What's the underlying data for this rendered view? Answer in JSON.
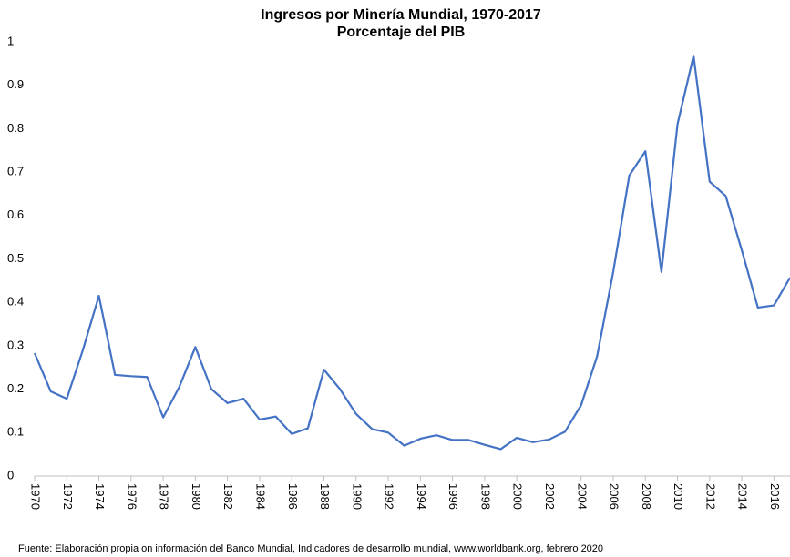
{
  "chart_data": {
    "type": "line",
    "title": "Ingresos por Minería Mundial, 1970-2017",
    "subtitle": "Porcentaje del PIB",
    "source": "Fuente: Elaboración propia on información del Banco Mundial, Indicadores de  desarrollo mundial,  www.worldbank.org, febrero 2020",
    "x": [
      1970,
      1971,
      1972,
      1973,
      1974,
      1975,
      1976,
      1977,
      1978,
      1979,
      1980,
      1981,
      1982,
      1983,
      1984,
      1985,
      1986,
      1987,
      1988,
      1989,
      1990,
      1991,
      1992,
      1993,
      1994,
      1995,
      1996,
      1997,
      1998,
      1999,
      2000,
      2001,
      2002,
      2003,
      2004,
      2005,
      2006,
      2007,
      2008,
      2009,
      2010,
      2011,
      2012,
      2013,
      2014,
      2015,
      2016,
      2017
    ],
    "series": [
      {
        "name": "Ingresos por Minería",
        "color": "#4472c4",
        "values": [
          0.283,
          0.195,
          0.178,
          0.29,
          0.415,
          0.233,
          0.23,
          0.228,
          0.135,
          0.205,
          0.297,
          0.2,
          0.168,
          0.178,
          0.13,
          0.137,
          0.097,
          0.11,
          0.245,
          0.2,
          0.143,
          0.108,
          0.1,
          0.07,
          0.086,
          0.094,
          0.083,
          0.083,
          0.072,
          0.062,
          0.088,
          0.078,
          0.084,
          0.102,
          0.163,
          0.276,
          0.47,
          0.692,
          0.748,
          0.47,
          0.81,
          0.968,
          0.678,
          0.645,
          0.52,
          0.388,
          0.393,
          0.457
        ]
      }
    ],
    "xlim": [
      1970,
      2017
    ],
    "xticks": [
      1970,
      1972,
      1974,
      1976,
      1978,
      1980,
      1982,
      1984,
      1986,
      1988,
      1990,
      1992,
      1994,
      1996,
      1998,
      2000,
      2002,
      2004,
      2006,
      2008,
      2010,
      2012,
      2014,
      2016
    ],
    "ylim": [
      0,
      1
    ],
    "yticks": [
      0,
      0.1,
      0.2,
      0.3,
      0.4,
      0.5,
      0.6,
      0.7,
      0.8,
      0.9,
      1
    ],
    "grid": false
  }
}
